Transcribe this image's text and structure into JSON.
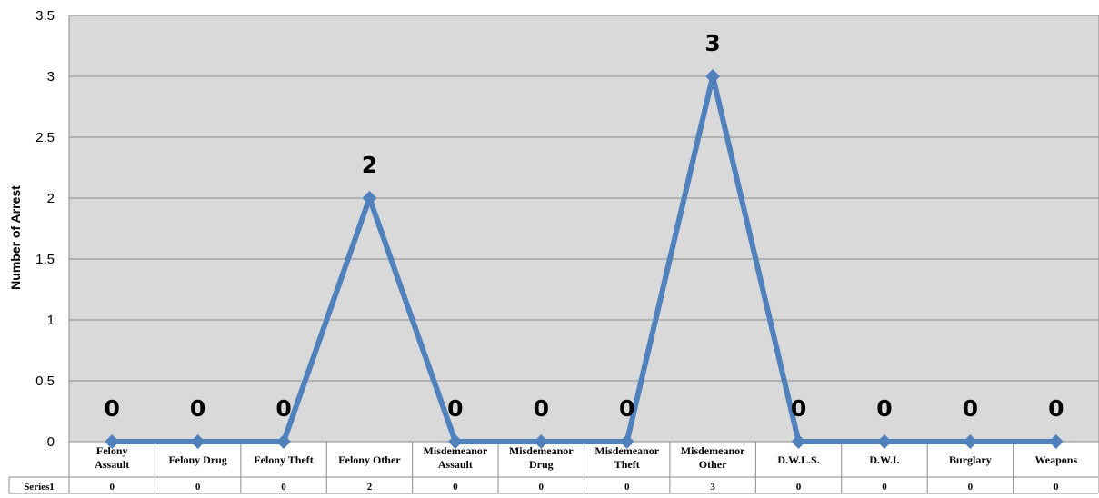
{
  "chart_data": {
    "type": "line",
    "title": "",
    "xlabel": "",
    "ylabel": "Number of Arrest",
    "ylim": [
      0,
      3.5
    ],
    "yticks": [
      "0",
      "0.5",
      "1",
      "1.5",
      "2",
      "2.5",
      "3",
      "3.5"
    ],
    "grid": true,
    "legend": "none",
    "categories": [
      [
        "Felony",
        "Assault"
      ],
      [
        "Felony Drug"
      ],
      [
        "Felony Theft"
      ],
      [
        "Felony Other"
      ],
      [
        "Misdemeanor",
        "Assault"
      ],
      [
        "Misdemeanor",
        "Drug"
      ],
      [
        "Misdemeanor",
        "Theft"
      ],
      [
        "Misdemeanor",
        "Other"
      ],
      [
        "D.W.L.S."
      ],
      [
        "D.W.I."
      ],
      [
        "Burglary"
      ],
      [
        "Weapons"
      ]
    ],
    "series": [
      {
        "name": "Series1",
        "values": [
          0,
          0,
          0,
          2,
          0,
          0,
          0,
          3,
          0,
          0,
          0,
          0
        ],
        "data_labels": [
          "0",
          "0",
          "0",
          "2",
          "0",
          "0",
          "0",
          "3",
          "0",
          "0",
          "0",
          "0"
        ],
        "table_values": [
          "0",
          "0",
          "0",
          "2",
          "0",
          "0",
          "0",
          "3",
          "0",
          "0",
          "0",
          "0"
        ]
      }
    ],
    "data_table": true,
    "colors": {
      "plot_background": "#d9d9d9",
      "gridline": "#8c8c8c",
      "series_line": "#4f81bd",
      "table_border": "#8c8c8c"
    }
  }
}
